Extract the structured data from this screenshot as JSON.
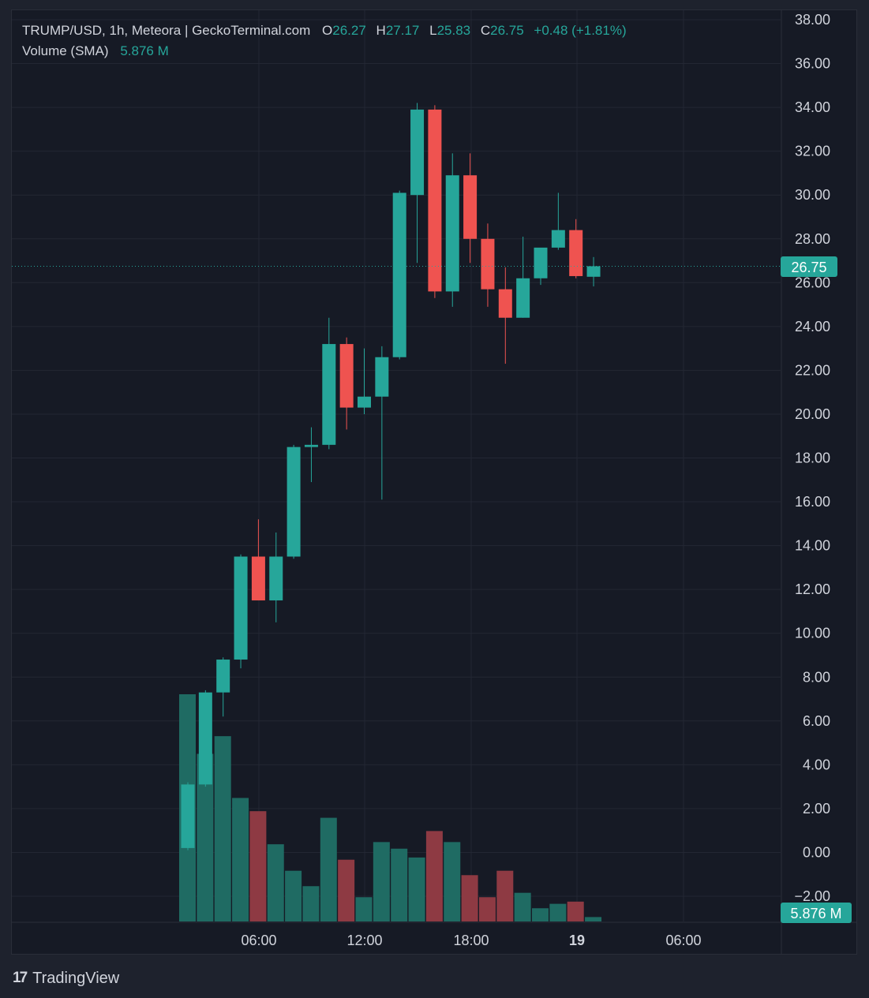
{
  "header": {
    "symbol": "TRUMP/USD, 1h, Meteora | GeckoTerminal.com",
    "open_label": "O",
    "open": "26.27",
    "high_label": "H",
    "high": "27.17",
    "low_label": "L",
    "low": "25.83",
    "close_label": "C",
    "close": "26.75",
    "change": "+0.48 (+1.81%)",
    "volume_label": "Volume (SMA)",
    "volume_value": "5.876 M"
  },
  "branding": {
    "name": "TradingView",
    "logo_text": "17"
  },
  "colors": {
    "background": "#161a25",
    "up": "#26a69a",
    "down": "#ef5350",
    "volume_up": "#1f6b63",
    "volume_down": "#8e3a43",
    "grid": "#232733",
    "text": "#d1d4dc"
  },
  "chart_data": {
    "type": "candlestick",
    "series": [
      {
        "name": "TRUMP/USD",
        "candles": [
          {
            "o": 0.2,
            "h": 3.2,
            "l": 0.1,
            "c": 3.1
          },
          {
            "o": 3.1,
            "h": 7.4,
            "l": 3.0,
            "c": 7.3
          },
          {
            "o": 7.3,
            "h": 8.9,
            "l": 6.2,
            "c": 8.8
          },
          {
            "o": 8.8,
            "h": 13.6,
            "l": 8.4,
            "c": 13.5
          },
          {
            "o": 13.5,
            "h": 15.2,
            "l": 11.5,
            "c": 11.5
          },
          {
            "o": 11.5,
            "h": 14.6,
            "l": 10.5,
            "c": 13.5
          },
          {
            "o": 13.5,
            "h": 18.6,
            "l": 13.4,
            "c": 18.5
          },
          {
            "o": 18.5,
            "h": 19.4,
            "l": 16.9,
            "c": 18.6
          },
          {
            "o": 18.6,
            "h": 24.4,
            "l": 18.4,
            "c": 23.2
          },
          {
            "o": 23.2,
            "h": 23.5,
            "l": 19.3,
            "c": 20.3
          },
          {
            "o": 20.3,
            "h": 23.0,
            "l": 20.0,
            "c": 20.8
          },
          {
            "o": 20.8,
            "h": 23.1,
            "l": 16.1,
            "c": 22.6
          },
          {
            "o": 22.6,
            "h": 30.2,
            "l": 22.5,
            "c": 30.1
          },
          {
            "o": 30.0,
            "h": 34.2,
            "l": 26.9,
            "c": 33.9
          },
          {
            "o": 33.9,
            "h": 34.1,
            "l": 25.3,
            "c": 25.6
          },
          {
            "o": 25.6,
            "h": 31.9,
            "l": 24.9,
            "c": 30.9
          },
          {
            "o": 30.9,
            "h": 31.9,
            "l": 26.9,
            "c": 28.0
          },
          {
            "o": 28.0,
            "h": 28.7,
            "l": 24.9,
            "c": 25.7
          },
          {
            "o": 25.7,
            "h": 26.7,
            "l": 22.3,
            "c": 24.4
          },
          {
            "o": 24.4,
            "h": 28.1,
            "l": 24.4,
            "c": 26.2
          },
          {
            "o": 26.2,
            "h": 27.5,
            "l": 25.9,
            "c": 27.6
          },
          {
            "o": 27.6,
            "h": 30.1,
            "l": 27.5,
            "c": 28.4
          },
          {
            "o": 28.4,
            "h": 28.9,
            "l": 26.2,
            "c": 26.3
          },
          {
            "o": 26.27,
            "h": 27.17,
            "l": 25.83,
            "c": 26.75
          }
        ]
      },
      {
        "name": "Volume (SMA)",
        "values": [
          10.3,
          7.6,
          8.4,
          5.6,
          5.0,
          3.5,
          2.3,
          1.6,
          4.7,
          2.8,
          1.1,
          3.6,
          3.3,
          2.9,
          4.1,
          3.6,
          2.1,
          1.1,
          2.3,
          1.3,
          0.6,
          0.8,
          0.9,
          0.2
        ],
        "colors": [
          "up",
          "up",
          "up",
          "up",
          "down",
          "up",
          "up",
          "up",
          "up",
          "down",
          "up",
          "up",
          "up",
          "up",
          "down",
          "up",
          "down",
          "down",
          "down",
          "up",
          "up",
          "up",
          "down",
          "up"
        ]
      }
    ],
    "x_ticks": [
      "06:00",
      "12:00",
      "18:00",
      "19",
      "06:00"
    ],
    "y_ticks": [
      "−2.00",
      "0.00",
      "2.00",
      "4.00",
      "6.00",
      "8.00",
      "10.00",
      "12.00",
      "14.00",
      "16.00",
      "18.00",
      "20.00",
      "22.00",
      "24.00",
      "26.00",
      "28.00",
      "30.00",
      "32.00",
      "34.00",
      "36.00",
      "38.00"
    ],
    "ylim": [
      -2.0,
      38.0
    ],
    "last_price": "26.75",
    "last_volume": "5.876 M",
    "grid": true
  }
}
